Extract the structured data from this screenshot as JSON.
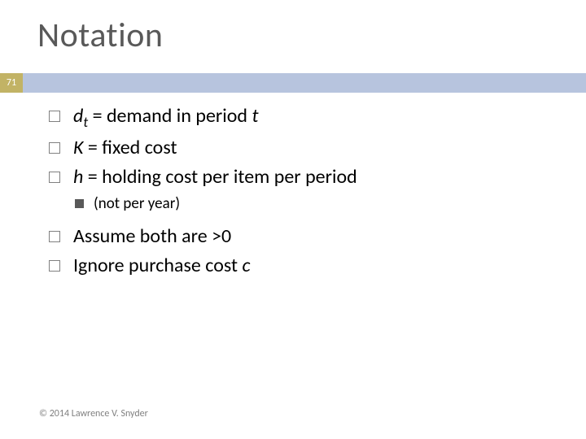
{
  "title": "Notation",
  "page_number": "71",
  "colors": {
    "bar_bg": "#b7c4de",
    "pagebox_bg": "#c2b365",
    "pagebox_fg": "#ffffff",
    "title_color": "#595959",
    "text_color": "#000000",
    "bullet_border": "#808080",
    "bullet_filled": "#595959",
    "footer_color": "#808080",
    "background": "#ffffff"
  },
  "typography": {
    "title_fontsize": 42,
    "body_fontsize": 24,
    "sub_fontsize": 19,
    "footer_fontsize": 12,
    "page_fontsize": 12,
    "font_family": "Gill Sans MT"
  },
  "bullets": [
    {
      "var": "d",
      "sub": "t",
      "rest": " = demand in period ",
      "tail_var": "t"
    },
    {
      "var": "K",
      "rest": " = fixed cost"
    },
    {
      "var": "h",
      "rest": " = holding cost per item per period",
      "subitems": [
        {
          "text": "(not per year)"
        }
      ]
    },
    {
      "plain": "Assume both are >0"
    },
    {
      "plain_prefix": "Ignore purchase cost ",
      "var_tail": "c"
    }
  ],
  "footer": "© 2014 Lawrence V. Snyder"
}
